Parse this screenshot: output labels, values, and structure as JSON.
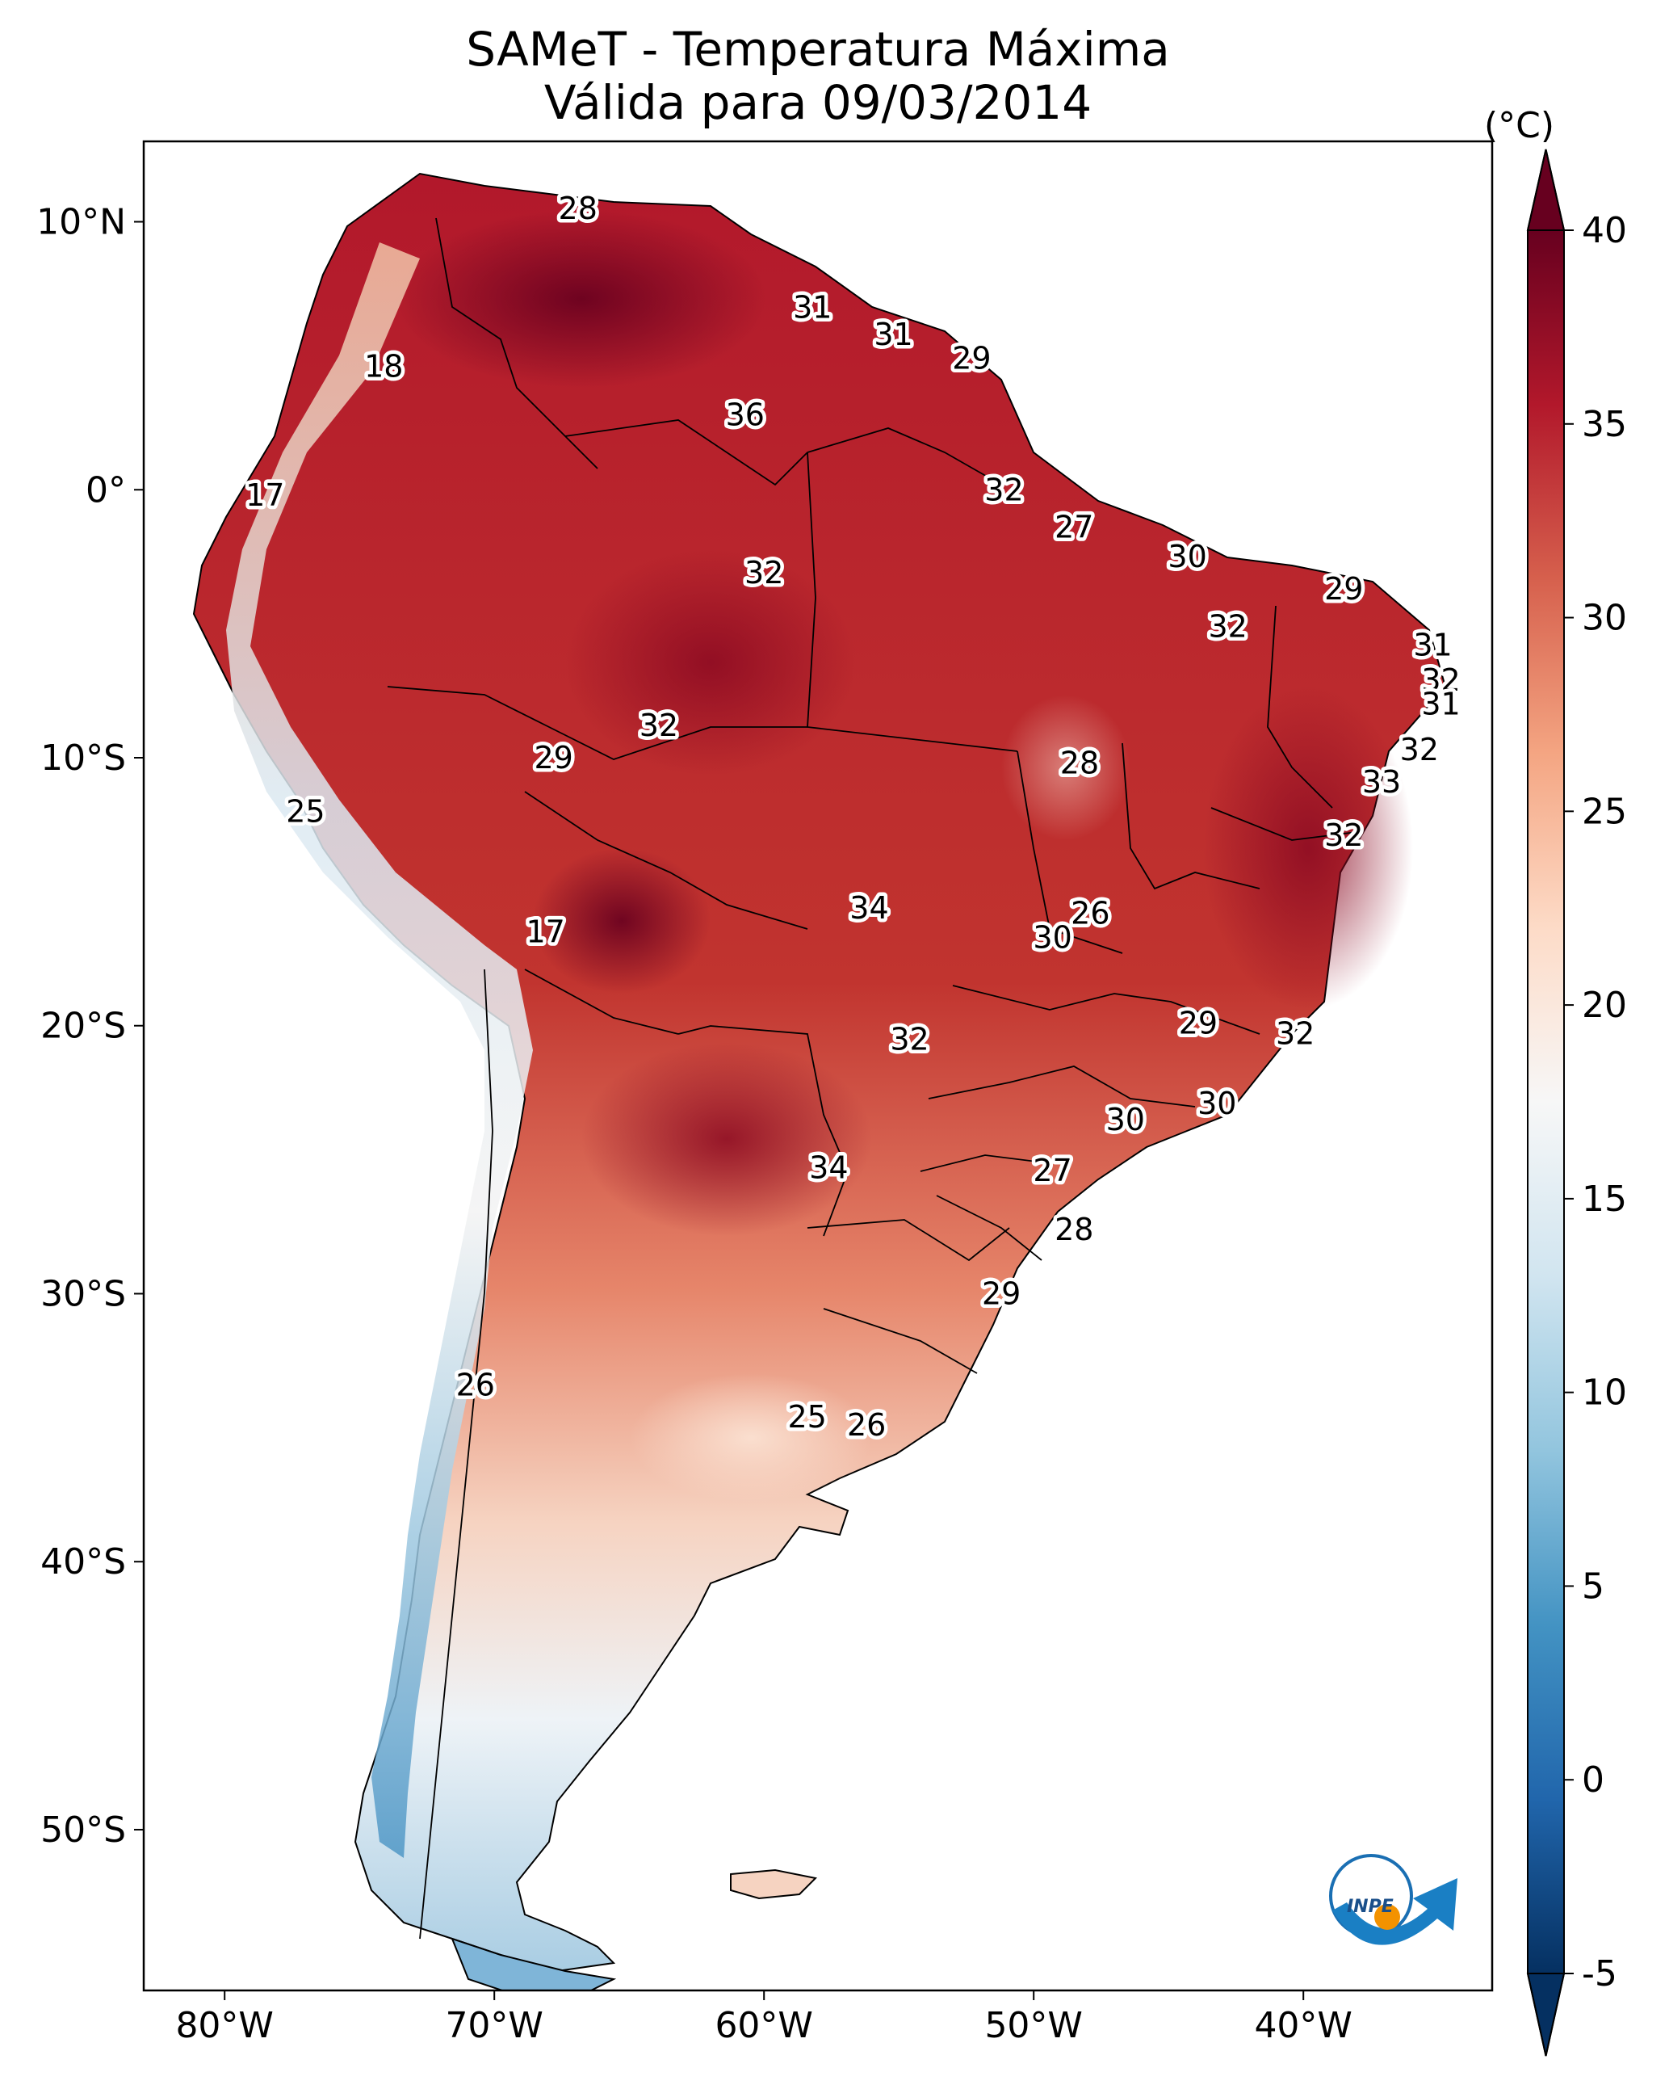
{
  "title": "SAMeT - Temperatura Máxima",
  "subtitle": "Válida para 09/03/2014",
  "colorbar": {
    "unit": "(°C)",
    "min": -5,
    "max": 40,
    "ticks": [
      "40",
      "35",
      "30",
      "25",
      "20",
      "15",
      "10",
      "5",
      "0",
      "-5"
    ],
    "tick_values": [
      40,
      35,
      30,
      25,
      20,
      15,
      10,
      5,
      0,
      -5
    ],
    "colors": [
      "#053061",
      "#2166ac",
      "#4393c3",
      "#92c5de",
      "#d1e5f0",
      "#f7f7f7",
      "#fddbc7",
      "#f4a582",
      "#d6604d",
      "#b2182b",
      "#67001f"
    ]
  },
  "axes": {
    "lon_range": [
      -83,
      -33
    ],
    "lat_range": [
      -56,
      13
    ],
    "x_ticks": [
      {
        "value": -80,
        "label": "80°W"
      },
      {
        "value": -70,
        "label": "70°W"
      },
      {
        "value": -60,
        "label": "60°W"
      },
      {
        "value": -50,
        "label": "50°W"
      },
      {
        "value": -40,
        "label": "40°W"
      }
    ],
    "y_ticks": [
      {
        "value": 10,
        "label": "10°N"
      },
      {
        "value": 0,
        "label": "0°"
      },
      {
        "value": -10,
        "label": "10°S"
      },
      {
        "value": -20,
        "label": "20°S"
      },
      {
        "value": -30,
        "label": "30°S"
      },
      {
        "value": -40,
        "label": "40°S"
      },
      {
        "value": -50,
        "label": "50°S"
      }
    ]
  },
  "city_labels": [
    {
      "lon": -66.9,
      "lat": 10.5,
      "text": "28"
    },
    {
      "lon": -74.1,
      "lat": 4.6,
      "text": "18"
    },
    {
      "lon": -78.5,
      "lat": -0.2,
      "text": "17"
    },
    {
      "lon": -58.2,
      "lat": 6.8,
      "text": "31"
    },
    {
      "lon": -55.2,
      "lat": 5.8,
      "text": "31"
    },
    {
      "lon": -52.3,
      "lat": 4.9,
      "text": "29"
    },
    {
      "lon": -60.7,
      "lat": 2.8,
      "text": "36"
    },
    {
      "lon": -51.1,
      "lat": 0.0,
      "text": "32"
    },
    {
      "lon": -48.5,
      "lat": -1.4,
      "text": "27"
    },
    {
      "lon": -44.3,
      "lat": -2.5,
      "text": "30"
    },
    {
      "lon": -60.0,
      "lat": -3.1,
      "text": "32"
    },
    {
      "lon": -38.5,
      "lat": -3.7,
      "text": "29"
    },
    {
      "lon": -42.8,
      "lat": -5.1,
      "text": "32"
    },
    {
      "lon": -35.2,
      "lat": -5.8,
      "text": "31"
    },
    {
      "lon": -34.9,
      "lat": -7.1,
      "text": "32"
    },
    {
      "lon": -34.9,
      "lat": -8.0,
      "text": "31"
    },
    {
      "lon": -63.9,
      "lat": -8.8,
      "text": "32"
    },
    {
      "lon": -67.8,
      "lat": -10.0,
      "text": "29"
    },
    {
      "lon": -35.7,
      "lat": -9.7,
      "text": "32"
    },
    {
      "lon": -48.3,
      "lat": -10.2,
      "text": "28"
    },
    {
      "lon": -37.1,
      "lat": -10.9,
      "text": "33"
    },
    {
      "lon": -77.0,
      "lat": -12.0,
      "text": "25"
    },
    {
      "lon": -38.5,
      "lat": -12.9,
      "text": "32"
    },
    {
      "lon": -56.1,
      "lat": -15.6,
      "text": "34"
    },
    {
      "lon": -47.9,
      "lat": -15.8,
      "text": "26"
    },
    {
      "lon": -49.3,
      "lat": -16.7,
      "text": "30"
    },
    {
      "lon": -68.1,
      "lat": -16.5,
      "text": "17"
    },
    {
      "lon": -43.9,
      "lat": -19.9,
      "text": "29"
    },
    {
      "lon": -40.3,
      "lat": -20.3,
      "text": "32"
    },
    {
      "lon": -54.6,
      "lat": -20.5,
      "text": "32"
    },
    {
      "lon": -43.2,
      "lat": -22.9,
      "text": "30"
    },
    {
      "lon": -46.6,
      "lat": -23.5,
      "text": "30"
    },
    {
      "lon": -57.6,
      "lat": -25.3,
      "text": "34"
    },
    {
      "lon": -49.3,
      "lat": -25.4,
      "text": "27"
    },
    {
      "lon": -48.5,
      "lat": -27.6,
      "text": "28"
    },
    {
      "lon": -51.2,
      "lat": -30.0,
      "text": "29"
    },
    {
      "lon": -70.7,
      "lat": -33.4,
      "text": "26"
    },
    {
      "lon": -58.4,
      "lat": -34.6,
      "text": "25"
    },
    {
      "lon": -56.2,
      "lat": -34.9,
      "text": "26"
    }
  ]
}
